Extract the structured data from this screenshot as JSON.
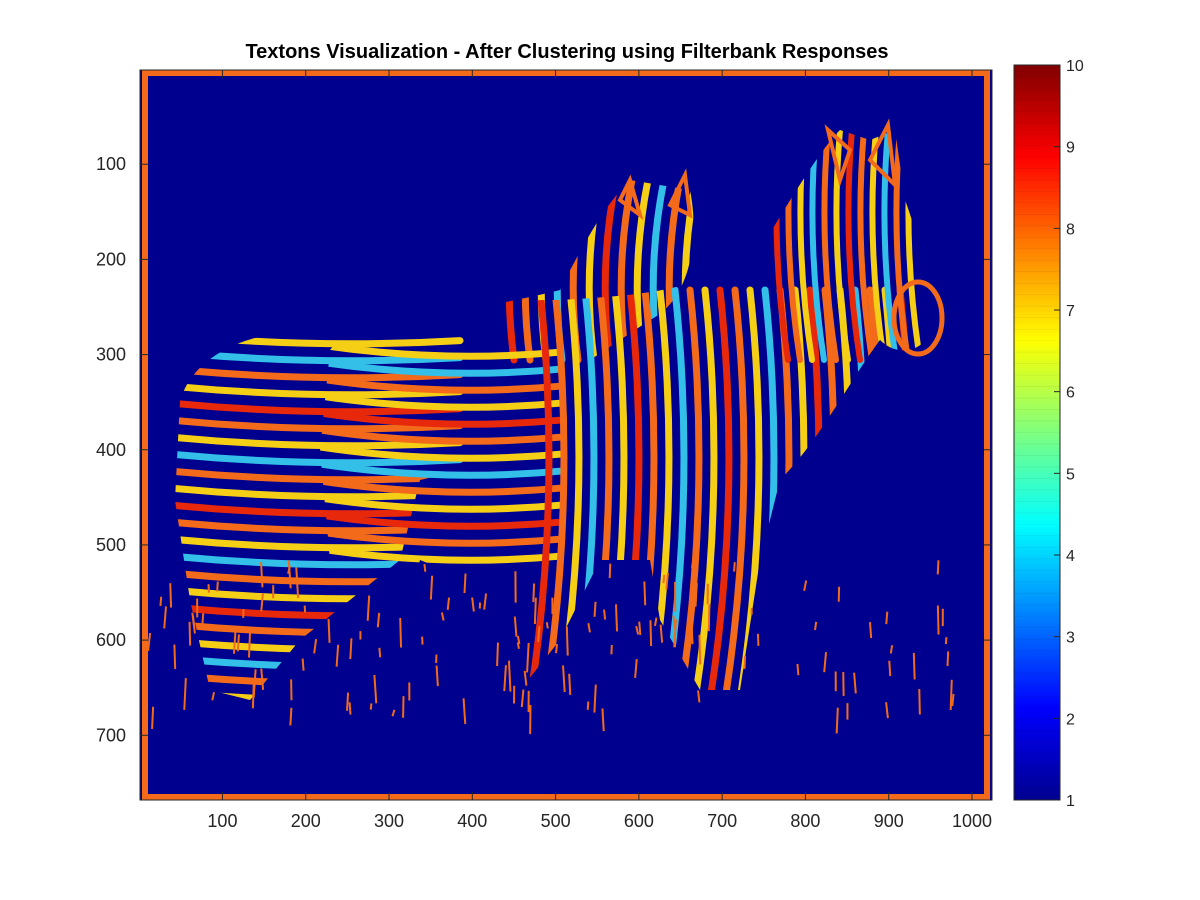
{
  "figure": {
    "title": "Textons Visualization - After Clustering using Filterbank Responses"
  },
  "chart_data": {
    "type": "heatmap",
    "title": "Textons Visualization - After Clustering using Filterbank Responses",
    "xlabel": "",
    "ylabel": "",
    "xlim": [
      1,
      1024
    ],
    "ylim": [
      1,
      768
    ],
    "y_direction": "reverse",
    "x_ticks": [
      100,
      200,
      300,
      400,
      500,
      600,
      700,
      800,
      900,
      1000
    ],
    "y_ticks": [
      100,
      200,
      300,
      400,
      500,
      600,
      700
    ],
    "grid": false,
    "colormap": "jet",
    "background_cluster": 1,
    "border_cluster": 8,
    "colorbar": {
      "location": "right",
      "range": [
        1,
        10
      ],
      "ticks": [
        1,
        2,
        3,
        4,
        5,
        6,
        7,
        8,
        9,
        10
      ]
    },
    "colors": {
      "background": "#00008f",
      "stripe_red": "#e8280a",
      "stripe_orange": "#f26a1a",
      "stripe_yellow": "#f5cf15",
      "stripe_cyan": "#33bfe8"
    },
    "content_description": "zebra"
  }
}
